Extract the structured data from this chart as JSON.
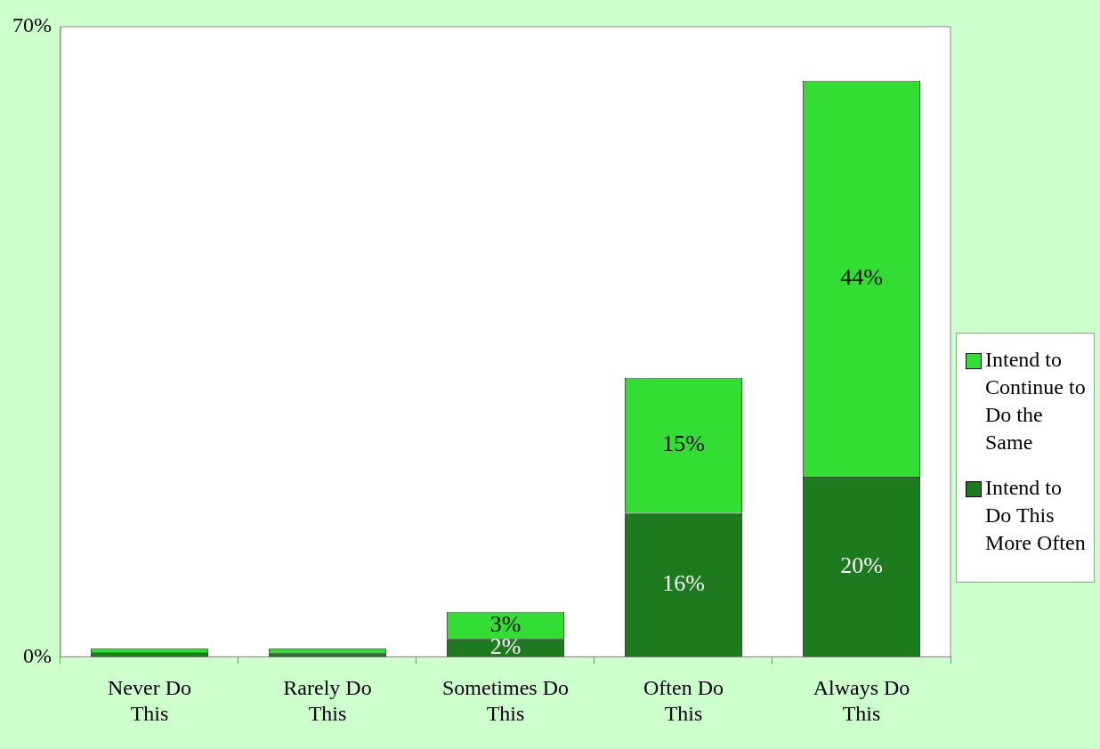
{
  "chart_data": {
    "type": "bar",
    "stacked": true,
    "categories": [
      "Never Do This",
      "Rarely Do This",
      "Sometimes Do This",
      "Often Do This",
      "Always Do This"
    ],
    "series": [
      {
        "name": "Intend to Do This More Often",
        "color": "#1e7a1e",
        "values": [
          0.5,
          0.4,
          2,
          16,
          20
        ],
        "value_labels": [
          null,
          null,
          "2%",
          "16%",
          "20%"
        ]
      },
      {
        "name": "Intend to Continue to Do the Same",
        "color": "#33dd33",
        "values": [
          0.4,
          0.5,
          3,
          15,
          44
        ],
        "value_labels": [
          null,
          null,
          "3%",
          "15%",
          "44%"
        ]
      }
    ],
    "ylim": [
      0,
      70
    ],
    "yticks": [
      {
        "value": 0,
        "label": "0%"
      },
      {
        "value": 70,
        "label": "70%"
      }
    ],
    "legend": "right"
  }
}
